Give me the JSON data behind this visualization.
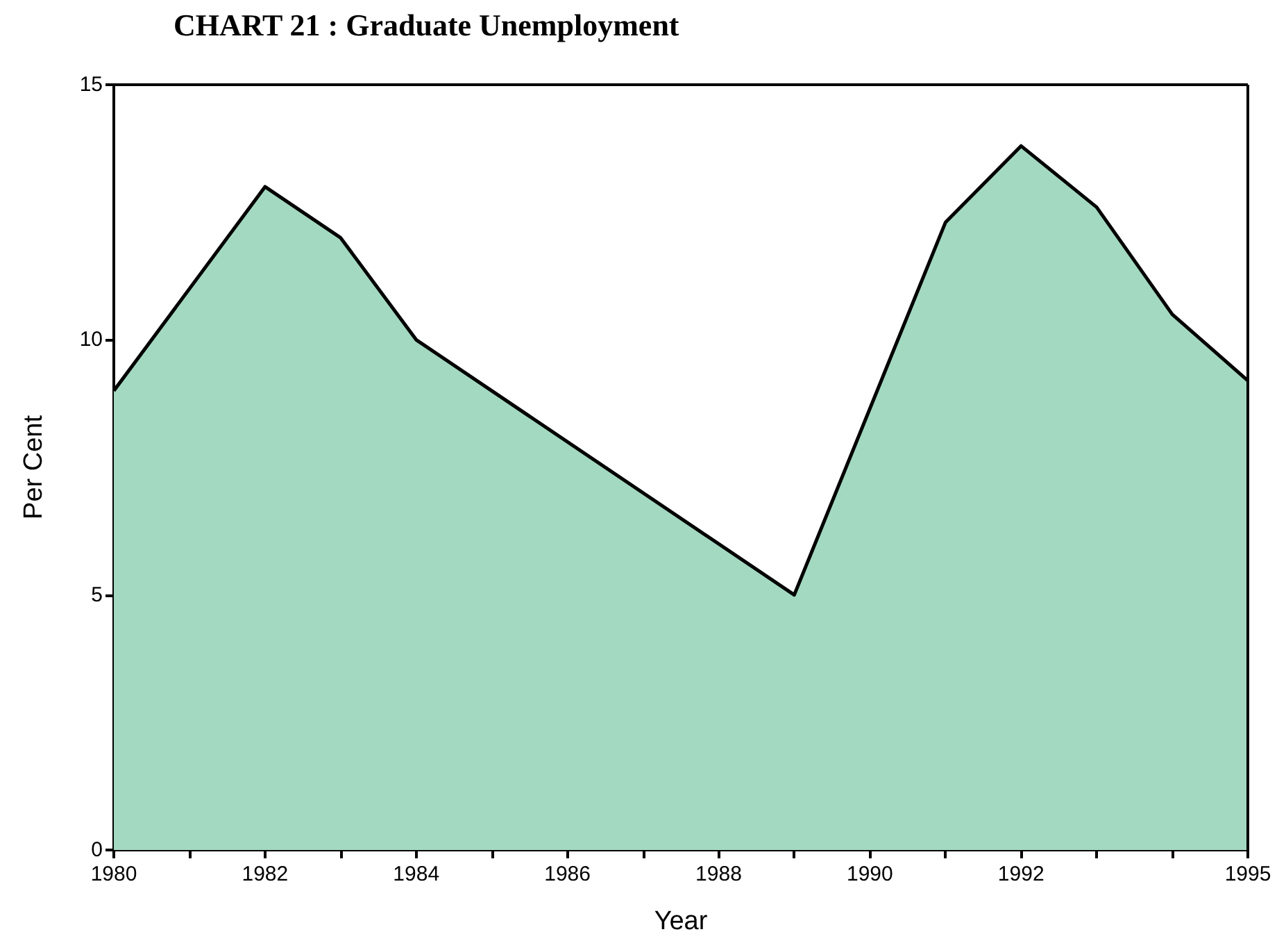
{
  "chart_data": {
    "type": "area",
    "title": "CHART 21 : Graduate Unemployment",
    "xlabel": "Year",
    "ylabel": "Per Cent",
    "x": [
      1980,
      1982,
      1983,
      1984,
      1989,
      1991,
      1992,
      1993,
      1994,
      1995
    ],
    "series": [
      {
        "color": "#a3d9c1",
        "values": [
          9,
          13,
          12,
          10,
          5,
          12.3,
          13.8,
          12.6,
          10.5,
          9.2
        ]
      }
    ],
    "xlim": [
      1980,
      1995
    ],
    "xticks": [
      1980,
      {
        "value": 1981,
        "label": null
      },
      1982,
      {
        "value": 1983,
        "label": null
      },
      1984,
      {
        "value": 1985,
        "label": null
      },
      1986,
      {
        "value": 1987,
        "label": null
      },
      1988,
      {
        "value": 1989,
        "label": null
      },
      1990,
      {
        "value": 1991,
        "label": null
      },
      1992,
      {
        "value": 1993,
        "label": null
      },
      {
        "value": 1994,
        "label": null
      },
      1995
    ],
    "ylim": [
      0,
      15
    ],
    "yticks": [
      0,
      5,
      10,
      15
    ],
    "marker": "none",
    "line_style": "solid"
  }
}
